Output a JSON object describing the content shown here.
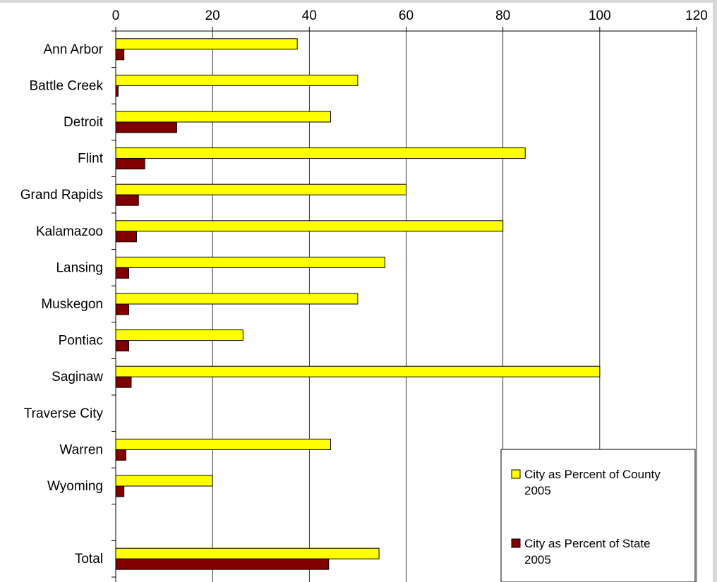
{
  "chart_data": {
    "type": "bar",
    "orientation": "horizontal",
    "categories": [
      "Ann Arbor",
      "Battle Creek",
      "Detroit",
      "Flint",
      "Grand Rapids",
      "Kalamazoo",
      "Lansing",
      "Muskegon",
      "Pontiac",
      "Saginaw",
      "Traverse City",
      "Warren",
      "Wyoming",
      "",
      "Total"
    ],
    "series": [
      {
        "name": "City as Percent of County 2005",
        "legend_lines": [
          "City as Percent of County",
          "2005"
        ],
        "color": "#ffff00",
        "values": [
          37.5,
          50,
          44.4,
          84.6,
          60,
          80,
          55.6,
          50,
          26.3,
          100,
          null,
          44.4,
          20,
          null,
          54.4
        ]
      },
      {
        "name": "City as Percent of State 2005",
        "legend_lines": [
          "City as Percent of State",
          "2005"
        ],
        "color": "#800000",
        "values": [
          1.7,
          0.5,
          12.6,
          6,
          4.7,
          4.3,
          2.7,
          2.7,
          2.7,
          3.2,
          null,
          2.1,
          1.7,
          null,
          44
        ]
      }
    ],
    "x_ticks": [
      "0",
      "20",
      "40",
      "60",
      "80",
      "100",
      "120"
    ],
    "xlim": [
      0,
      120
    ],
    "grid": "vertical",
    "axis_position": "top",
    "legend_position": "bottom-right",
    "title": "",
    "xlabel": "",
    "ylabel": ""
  }
}
